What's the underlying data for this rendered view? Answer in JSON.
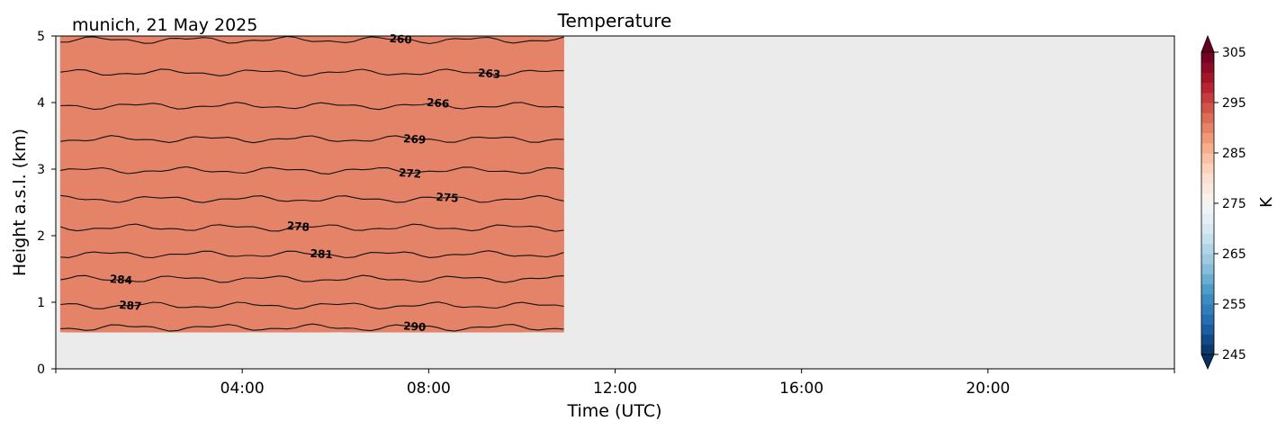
{
  "chart_data": {
    "type": "heatmap",
    "title": "Temperature",
    "subtitle": "munich, 21 May 2025",
    "xlabel": "Time (UTC)",
    "ylabel": "Height a.s.l. (km)",
    "xlim": [
      0,
      24
    ],
    "ylim": [
      0,
      5
    ],
    "x_ticks": [
      4,
      8,
      12,
      16,
      20
    ],
    "x_tick_labels": [
      "04:00",
      "08:00",
      "12:00",
      "16:00",
      "20:00"
    ],
    "y_ticks": [
      0,
      1,
      2,
      3,
      4,
      5
    ],
    "y_tick_labels": [
      "0",
      "1",
      "2",
      "3",
      "4",
      "5"
    ],
    "data_extent": {
      "x": [
        0.1,
        10.9
      ],
      "y": [
        0.55,
        5.0
      ]
    },
    "missing_color": "#ebebeb",
    "colorbar": {
      "label": "K",
      "range": [
        245,
        305
      ],
      "ticks": [
        245,
        255,
        265,
        275,
        285,
        295,
        305
      ],
      "tick_labels": [
        "245",
        "255",
        "265",
        "275",
        "285",
        "295",
        "305"
      ],
      "colormap": "RdBu_r"
    },
    "contours": [
      {
        "level": 260,
        "height_km": 4.94,
        "label": "260",
        "label_time": 7.4
      },
      {
        "level": 263,
        "height_km": 4.45,
        "label": "263",
        "label_time": 9.3
      },
      {
        "level": 266,
        "height_km": 3.95,
        "label": "266",
        "label_time": 8.2
      },
      {
        "level": 269,
        "height_km": 3.45,
        "label": "269",
        "label_time": 7.7
      },
      {
        "level": 272,
        "height_km": 2.98,
        "label": "272",
        "label_time": 7.6
      },
      {
        "level": 275,
        "height_km": 2.55,
        "label": "275",
        "label_time": 8.4
      },
      {
        "level": 278,
        "height_km": 2.12,
        "label": "278",
        "label_time": 5.2
      },
      {
        "level": 281,
        "height_km": 1.72,
        "label": "281",
        "label_time": 5.7
      },
      {
        "level": 284,
        "height_km": 1.35,
        "label": "284",
        "label_time": 1.4
      },
      {
        "level": 287,
        "height_km": 0.95,
        "label": "287",
        "label_time": 1.6
      },
      {
        "level": 290,
        "height_km": 0.62,
        "label": "290",
        "label_time": 7.7
      }
    ]
  }
}
